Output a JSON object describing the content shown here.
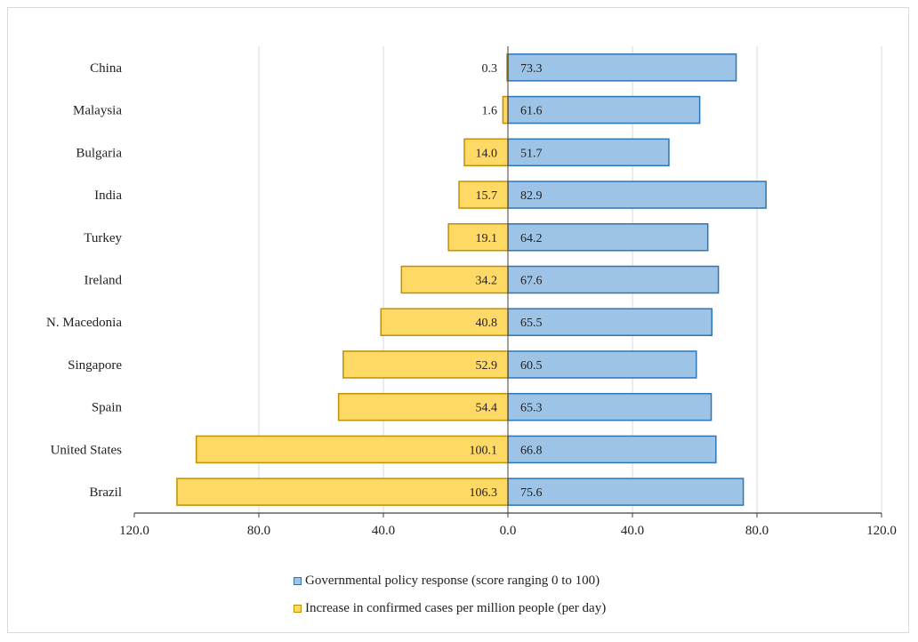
{
  "chart_data": {
    "type": "bar",
    "orientation": "horizontal-diverging",
    "categories": [
      "China",
      "Malaysia",
      "Bulgaria",
      "India",
      "Turkey",
      "Ireland",
      "N. Macedonia",
      "Singapore",
      "Spain",
      "United States",
      "Brazil"
    ],
    "series": [
      {
        "name": "Governmental policy response (score ranging 0 to 100)",
        "color": "#9dc3e6",
        "edge": "#2e75b6",
        "side": "right",
        "values": [
          73.3,
          61.6,
          51.7,
          82.9,
          64.2,
          67.6,
          65.5,
          60.5,
          65.3,
          66.8,
          75.6
        ]
      },
      {
        "name": "Increase in confirmed cases per million people (per day)",
        "color": "#ffd966",
        "edge": "#bf9000",
        "side": "left",
        "values": [
          0.3,
          1.6,
          14.0,
          15.7,
          19.1,
          34.2,
          40.8,
          52.9,
          54.4,
          100.1,
          106.3
        ]
      }
    ],
    "xlim": [
      -120,
      120
    ],
    "xticks": [
      "120.0",
      "80.0",
      "40.0",
      "0.0",
      "40.0",
      "80.0",
      "120.0"
    ],
    "grid": true,
    "legend_position": "bottom"
  }
}
